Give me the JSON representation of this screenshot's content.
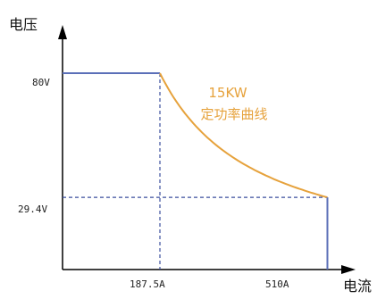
{
  "chart_data": {
    "type": "line",
    "xlabel": "电流",
    "ylabel": "电压",
    "x_ticks": [
      "187.5A",
      "510A"
    ],
    "y_ticks": [
      "80V",
      "29.4V"
    ],
    "annotation": [
      "15KW",
      "定功率曲线"
    ],
    "x_unit": "A",
    "y_unit": "V",
    "xlim": [
      0,
      590
    ],
    "ylim": [
      0,
      100
    ],
    "grid": false,
    "colors": {
      "boundary": "#5b6fb8",
      "curve": "#e6a23c",
      "axis": "#000000",
      "guides": "#3b4f9e"
    },
    "series": [
      {
        "segment": "constant-voltage",
        "points": [
          [
            0,
            80
          ],
          [
            187.5,
            80
          ]
        ]
      },
      {
        "segment": "constant-power",
        "power_w": 15000,
        "x_range": [
          187.5,
          510
        ]
      },
      {
        "segment": "current-limit",
        "points": [
          [
            510,
            29.4
          ],
          [
            510,
            0
          ]
        ]
      }
    ],
    "guides": [
      {
        "points": [
          [
            187.5,
            80
          ],
          [
            187.5,
            0
          ]
        ]
      },
      {
        "points": [
          [
            0,
            29.4
          ],
          [
            510,
            29.4
          ]
        ]
      }
    ]
  }
}
